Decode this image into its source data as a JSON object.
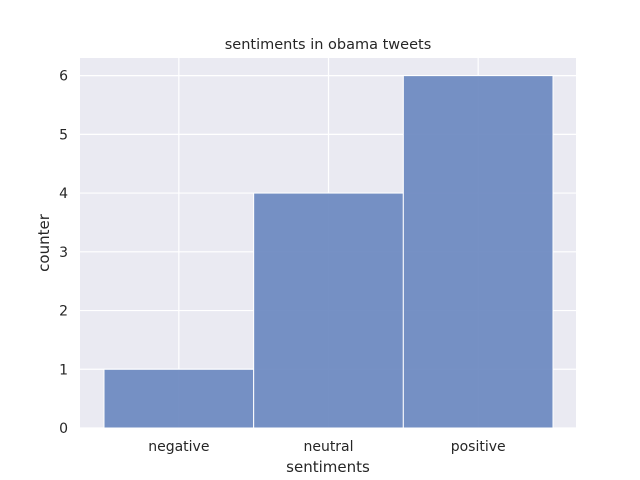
{
  "chart_data": {
    "type": "bar",
    "title": "sentiments in obama tweets",
    "xlabel": "sentiments",
    "ylabel": "counter",
    "categories": [
      "negative",
      "neutral",
      "positive"
    ],
    "values": [
      1,
      4,
      6
    ],
    "ylim": [
      0,
      6.3
    ],
    "yticks": [
      0,
      1,
      2,
      3,
      4,
      5,
      6
    ],
    "grid": true,
    "style": "seaborn-darkgrid",
    "colors": {
      "bar": "#6a88c0",
      "bar_edge": "#ffffff",
      "plot_background": "#eaeaf2",
      "grid": "#ffffff",
      "text": "#262626"
    }
  }
}
